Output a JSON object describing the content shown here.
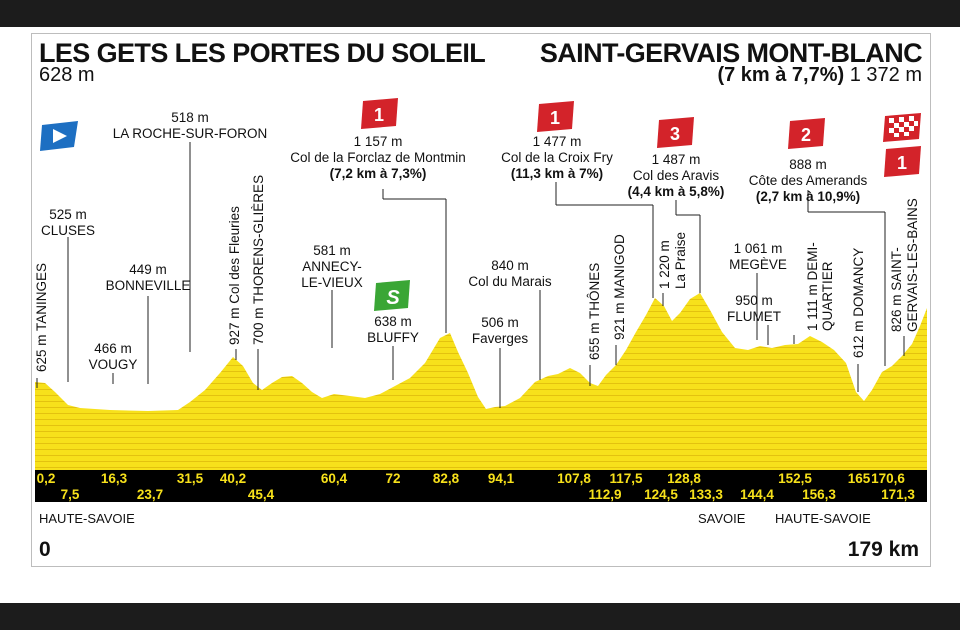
{
  "start": {
    "name": "LES GETS LES PORTES DU SOLEIL",
    "altitude": "628 m"
  },
  "finish": {
    "name": "SAINT-GERVAIS MONT-BLANC",
    "climb_detail": "(7 km à 7,7%)",
    "altitude": "1 372 m"
  },
  "distance": {
    "start": "0",
    "end": "179 km"
  },
  "regions": [
    "HAUTE-SAVOIE",
    "SAVOIE",
    "HAUTE-SAVOIE"
  ],
  "points": [
    {
      "alt": "625 m",
      "name": "TANINGES"
    },
    {
      "alt": "525 m",
      "name": "CLUSES"
    },
    {
      "alt": "449 m",
      "name": "BONNEVILLE"
    },
    {
      "alt": "466 m",
      "name": "VOUGY"
    },
    {
      "alt": "518 m",
      "name": "LA ROCHE-SUR-FORON"
    },
    {
      "alt": "927 m",
      "name": "Col des Fleuries"
    },
    {
      "alt": "700 m",
      "name": "THORENS-GLIÈRES"
    },
    {
      "alt": "581 m",
      "name1": "ANNECY-",
      "name2": "LE-VIEUX"
    },
    {
      "alt": "638 m",
      "name": "BLUFFY"
    },
    {
      "alt": "1 157 m",
      "name": "Col de la Forclaz de Montmin",
      "detail": "(7,2 km à 7,3%)"
    },
    {
      "alt": "506 m",
      "name": "Faverges"
    },
    {
      "alt": "840 m",
      "name": "Col du Marais"
    },
    {
      "alt": "655 m",
      "name": "THÔNES"
    },
    {
      "alt": "921 m",
      "name": "MANIGOD"
    },
    {
      "alt": "1 477 m",
      "name": "Col de la Croix Fry",
      "detail": "(11,3 km à 7%)"
    },
    {
      "alt": "1 220 m",
      "name": "La Praise"
    },
    {
      "alt": "1 487 m",
      "name": "Col des Aravis",
      "detail": "(4,4 km à 5,8%)"
    },
    {
      "alt": "1 061 m",
      "name": "MEGÈVE"
    },
    {
      "alt": "950 m",
      "name": "FLUMET"
    },
    {
      "alt": "1 111 m",
      "name1": "DEMI-",
      "name2": "QUARTIER"
    },
    {
      "alt": "888 m",
      "name": "Côte des Amerands",
      "detail": "(2,7 km à 10,9%)"
    },
    {
      "alt": "612 m",
      "name": "DOMANCY"
    },
    {
      "alt": "826 m",
      "name1": "SAINT-",
      "name2": "GERVAIS-LES-BAINS"
    }
  ],
  "badges": {
    "forclaz": "1",
    "croix_fry": "1",
    "aravis": "3",
    "amerands": "2",
    "finish": "1",
    "sprint": "S"
  },
  "km_top": [
    "0,2",
    "16,3",
    "31,5",
    "40,2",
    "60,4",
    "72",
    "82,8",
    "94,1",
    "107,8",
    "117,5",
    "128,8",
    "152,5",
    "165",
    "170,6"
  ],
  "km_bottom": [
    "7,5",
    "23,7",
    "45,4",
    "112,9",
    "124,5",
    "133,3",
    "144,4",
    "156,3",
    "171,3"
  ],
  "colors": {
    "profile": "#f7e11b",
    "band": "#000000",
    "km_text": "#f7e11b",
    "badge_red": "#d3232a",
    "sprint_green": "#3aa635",
    "start_flag": "#1d6fc2"
  }
}
